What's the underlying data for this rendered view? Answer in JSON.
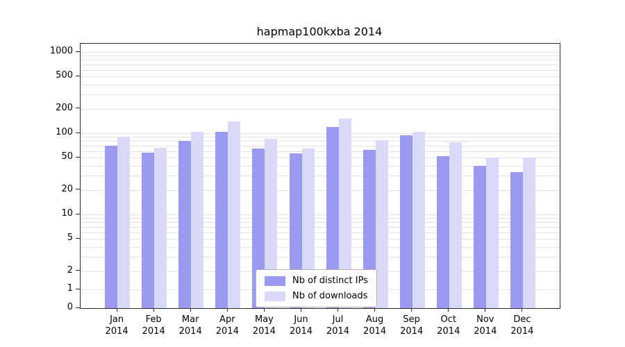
{
  "chart_data": {
    "type": "bar",
    "title": "hapmap100kxba 2014",
    "categories": [
      "Jan",
      "Feb",
      "Mar",
      "Apr",
      "May",
      "Jun",
      "Jul",
      "Aug",
      "Sep",
      "Oct",
      "Nov",
      "Dec"
    ],
    "year": "2014",
    "series": [
      {
        "name": "Nb of distinct IPs",
        "color": "#9a9af0",
        "values": [
          70,
          58,
          80,
          105,
          65,
          57,
          120,
          63,
          95,
          52,
          40,
          33
        ]
      },
      {
        "name": "Nb of downloads",
        "color": "#d9d9fa",
        "values": [
          90,
          66,
          105,
          140,
          85,
          65,
          150,
          82,
          105,
          78,
          50,
          50
        ]
      }
    ],
    "yscale": "symlog",
    "yticks": [
      0,
      1,
      2,
      5,
      10,
      20,
      50,
      100,
      200,
      500,
      1000
    ],
    "ylim": [
      0,
      1300
    ],
    "xlabel": "",
    "ylabel": "",
    "grid": true,
    "legend_position": "bottom-center"
  }
}
